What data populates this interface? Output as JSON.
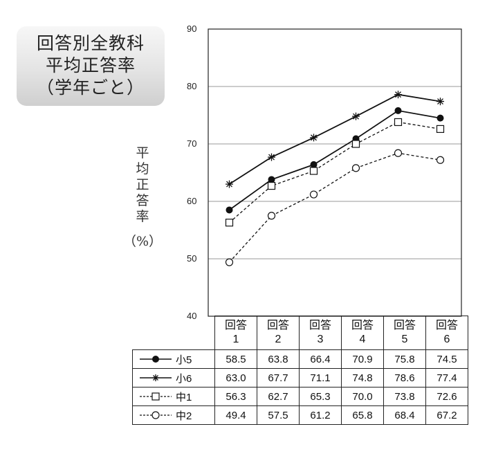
{
  "title_lines": [
    "回答別全教科",
    "平均正答率",
    "（学年ごと）"
  ],
  "chart_data": {
    "type": "line",
    "title": "回答別全教科 平均正答率（学年ごと）",
    "ylabel_chars": [
      "平",
      "均",
      "正",
      "答",
      "率"
    ],
    "ylabel_unit": "（%）",
    "ylim": [
      40,
      90
    ],
    "yticks": [
      40,
      50,
      60,
      70,
      80,
      90
    ],
    "grid": true,
    "categories": [
      {
        "top": "回答",
        "bottom": "1"
      },
      {
        "top": "回答",
        "bottom": "2"
      },
      {
        "top": "回答",
        "bottom": "3"
      },
      {
        "top": "回答",
        "bottom": "4"
      },
      {
        "top": "回答",
        "bottom": "5"
      },
      {
        "top": "回答",
        "bottom": "6"
      }
    ],
    "series": [
      {
        "name": "小5",
        "marker": "filled-circle",
        "line": "solid",
        "values": [
          "58.5",
          "63.8",
          "66.4",
          "70.9",
          "75.8",
          "74.5"
        ]
      },
      {
        "name": "小6",
        "marker": "asterisk",
        "line": "solid",
        "values": [
          "63.0",
          "67.7",
          "71.1",
          "74.8",
          "78.6",
          "77.4"
        ]
      },
      {
        "name": "中1",
        "marker": "open-square",
        "line": "dashed",
        "values": [
          "56.3",
          "62.7",
          "65.3",
          "70.0",
          "73.8",
          "72.6"
        ]
      },
      {
        "name": "中2",
        "marker": "open-circle",
        "line": "dashed",
        "values": [
          "49.4",
          "57.5",
          "61.2",
          "65.8",
          "68.4",
          "67.2"
        ]
      }
    ],
    "line_color": "#111111",
    "grid_color": "#9a9a9a"
  }
}
